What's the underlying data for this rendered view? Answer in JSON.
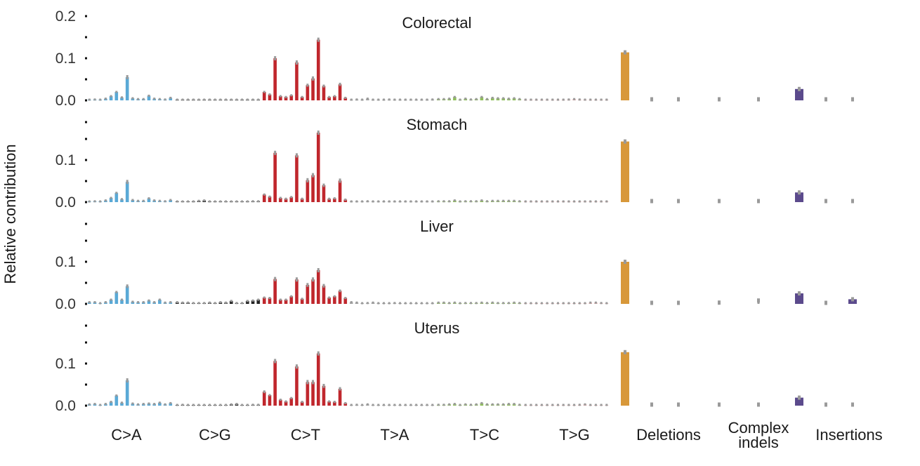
{
  "chart_data": {
    "type": "bar",
    "ylabel": "Relative contribution",
    "categories": [
      "C>A",
      "C>G",
      "C>T",
      "T>A",
      "T>C",
      "T>G",
      "Deletions",
      "Complex indels",
      "Insertions"
    ],
    "category_labels": [
      [
        "C>A"
      ],
      [
        "C>G"
      ],
      [
        "C>T"
      ],
      [
        "T>A"
      ],
      [
        "T>C"
      ],
      [
        "T>G"
      ],
      [
        "Deletions"
      ],
      [
        "Complex",
        "indels"
      ],
      [
        "Insertions"
      ]
    ],
    "colors": {
      "C>A": "#5aa9d6",
      "C>G": "#222222",
      "C>T": "#c0272d",
      "T>A": "#a8a8a8",
      "T>C": "#8fbf5a",
      "T>G": "#e7b0b0",
      "Deletions": "#d8983a",
      "Complex indels": "#d8c7a6",
      "Insertions": "#5b4a8c",
      "error": "#9a9a9a"
    },
    "panels": [
      {
        "title": "Colorectal",
        "yticks": [
          "0.2",
          "0.1",
          "0.0"
        ],
        "ylim": [
          0,
          0.2
        ],
        "snv": {
          "C>A": [
            0.001,
            0.002,
            0.001,
            0.004,
            0.01,
            0.02,
            0.007,
            0.055,
            0.005,
            0.003,
            0.003,
            0.011,
            0.004,
            0.003,
            0.002,
            0.006
          ],
          "C>G": [
            0.001,
            0.001,
            0.001,
            0.001,
            0.001,
            0.001,
            0.001,
            0.001,
            0.001,
            0.001,
            0.001,
            0.001,
            0.001,
            0.001,
            0.001,
            0.001
          ],
          "C>T": [
            0.02,
            0.014,
            0.1,
            0.01,
            0.008,
            0.012,
            0.09,
            0.008,
            0.036,
            0.052,
            0.144,
            0.034,
            0.008,
            0.01,
            0.038,
            0.006
          ],
          "T>A": [
            0.001,
            0.002,
            0.001,
            0.004,
            0.001,
            0.001,
            0.001,
            0.002,
            0.001,
            0.001,
            0.001,
            0.001,
            0.001,
            0.001,
            0.001,
            0.002
          ],
          "T>C": [
            0.003,
            0.003,
            0.004,
            0.008,
            0.001,
            0.004,
            0.002,
            0.003,
            0.008,
            0.003,
            0.006,
            0.005,
            0.005,
            0.004,
            0.005,
            0.003
          ],
          "T>G": [
            0.001,
            0.001,
            0.001,
            0.001,
            0.001,
            0.001,
            0.001,
            0.001,
            0.002,
            0.003,
            0.002,
            0.001,
            0.001,
            0.001,
            0.001,
            0.001
          ]
        },
        "indel": {
          "deletions": [
            0.114,
            0.002,
            0.001
          ],
          "complex": [
            0.001,
            0.001
          ],
          "insertions": [
            0.027,
            0.001,
            0.001
          ]
        }
      },
      {
        "title": "Stomach",
        "yticks": [
          "0.1",
          "0.0"
        ],
        "ylim": [
          0,
          0.2
        ],
        "snv": {
          "C>A": [
            0.001,
            0.002,
            0.001,
            0.004,
            0.01,
            0.022,
            0.007,
            0.048,
            0.005,
            0.003,
            0.003,
            0.009,
            0.004,
            0.003,
            0.002,
            0.005
          ],
          "C>G": [
            0.001,
            0.001,
            0.001,
            0.001,
            0.003,
            0.004,
            0.001,
            0.001,
            0.001,
            0.001,
            0.001,
            0.001,
            0.001,
            0.001,
            0.002,
            0.002
          ],
          "C>T": [
            0.018,
            0.013,
            0.117,
            0.01,
            0.008,
            0.012,
            0.111,
            0.008,
            0.052,
            0.064,
            0.165,
            0.04,
            0.008,
            0.009,
            0.051,
            0.006
          ],
          "T>A": [
            0.001,
            0.001,
            0.001,
            0.002,
            0.001,
            0.001,
            0.001,
            0.001,
            0.001,
            0.001,
            0.001,
            0.001,
            0.001,
            0.001,
            0.001,
            0.001
          ],
          "T>C": [
            0.002,
            0.002,
            0.002,
            0.004,
            0.001,
            0.002,
            0.002,
            0.002,
            0.004,
            0.002,
            0.003,
            0.003,
            0.003,
            0.003,
            0.003,
            0.002
          ],
          "T>G": [
            0.001,
            0.001,
            0.001,
            0.001,
            0.001,
            0.001,
            0.001,
            0.001,
            0.001,
            0.001,
            0.001,
            0.001,
            0.001,
            0.001,
            0.001,
            0.001
          ]
        },
        "indel": {
          "deletions": [
            0.144,
            0.002,
            0.001
          ],
          "complex": [
            0.002,
            0.002
          ],
          "insertions": [
            0.023,
            0.001,
            0.001
          ]
        }
      },
      {
        "title": "Liver",
        "yticks": [
          "0.1",
          "0.0"
        ],
        "ylim": [
          0,
          0.2
        ],
        "snv": {
          "C>A": [
            0.004,
            0.004,
            0.001,
            0.004,
            0.01,
            0.028,
            0.01,
            0.042,
            0.005,
            0.004,
            0.004,
            0.008,
            0.004,
            0.01,
            0.003,
            0.004
          ],
          "C>G": [
            0.004,
            0.003,
            0.003,
            0.002,
            0.002,
            0.002,
            0.003,
            0.002,
            0.004,
            0.003,
            0.007,
            0.002,
            0.002,
            0.007,
            0.008,
            0.01
          ],
          "C>T": [
            0.015,
            0.014,
            0.059,
            0.01,
            0.01,
            0.018,
            0.058,
            0.012,
            0.045,
            0.058,
            0.08,
            0.043,
            0.015,
            0.018,
            0.031,
            0.014
          ],
          "T>A": [
            0.004,
            0.003,
            0.001,
            0.002,
            0.003,
            0.001,
            0.001,
            0.001,
            0.002,
            0.001,
            0.001,
            0.001,
            0.001,
            0.001,
            0.001,
            0.001
          ],
          "T>C": [
            0.003,
            0.003,
            0.002,
            0.003,
            0.001,
            0.002,
            0.002,
            0.002,
            0.003,
            0.002,
            0.003,
            0.002,
            0.002,
            0.002,
            0.003,
            0.002
          ],
          "T>G": [
            0.001,
            0.001,
            0.001,
            0.001,
            0.001,
            0.001,
            0.001,
            0.001,
            0.001,
            0.001,
            0.001,
            0.001,
            0.003,
            0.003,
            0.002,
            0.001
          ]
        },
        "indel": {
          "deletions": [
            0.1,
            0.002,
            0.002
          ],
          "complex": [
            0.003,
            0.008
          ],
          "insertions": [
            0.025,
            0.002,
            0.011
          ]
        }
      },
      {
        "title": "Uterus",
        "yticks": [
          "0.1",
          "0.0"
        ],
        "ylim": [
          0,
          0.2
        ],
        "snv": {
          "C>A": [
            0.003,
            0.004,
            0.001,
            0.004,
            0.009,
            0.024,
            0.007,
            0.06,
            0.005,
            0.003,
            0.004,
            0.005,
            0.004,
            0.007,
            0.003,
            0.006
          ],
          "C>G": [
            0.001,
            0.002,
            0.001,
            0.001,
            0.001,
            0.001,
            0.001,
            0.001,
            0.001,
            0.001,
            0.003,
            0.004,
            0.001,
            0.001,
            0.002,
            0.002
          ],
          "C>T": [
            0.033,
            0.025,
            0.106,
            0.014,
            0.01,
            0.018,
            0.093,
            0.009,
            0.056,
            0.056,
            0.124,
            0.047,
            0.01,
            0.009,
            0.04,
            0.006
          ],
          "T>A": [
            0.001,
            0.002,
            0.001,
            0.003,
            0.001,
            0.001,
            0.001,
            0.001,
            0.001,
            0.001,
            0.001,
            0.001,
            0.001,
            0.001,
            0.001,
            0.001
          ],
          "T>C": [
            0.002,
            0.002,
            0.003,
            0.004,
            0.001,
            0.003,
            0.002,
            0.003,
            0.006,
            0.003,
            0.003,
            0.003,
            0.003,
            0.004,
            0.004,
            0.002
          ],
          "T>G": [
            0.001,
            0.001,
            0.001,
            0.001,
            0.001,
            0.001,
            0.001,
            0.001,
            0.001,
            0.001,
            0.002,
            0.003,
            0.001,
            0.001,
            0.001,
            0.001
          ]
        },
        "indel": {
          "deletions": [
            0.127,
            0.001,
            0.001
          ],
          "complex": [
            0.001,
            0.001
          ],
          "insertions": [
            0.019,
            0.001,
            0.001
          ]
        }
      }
    ]
  }
}
